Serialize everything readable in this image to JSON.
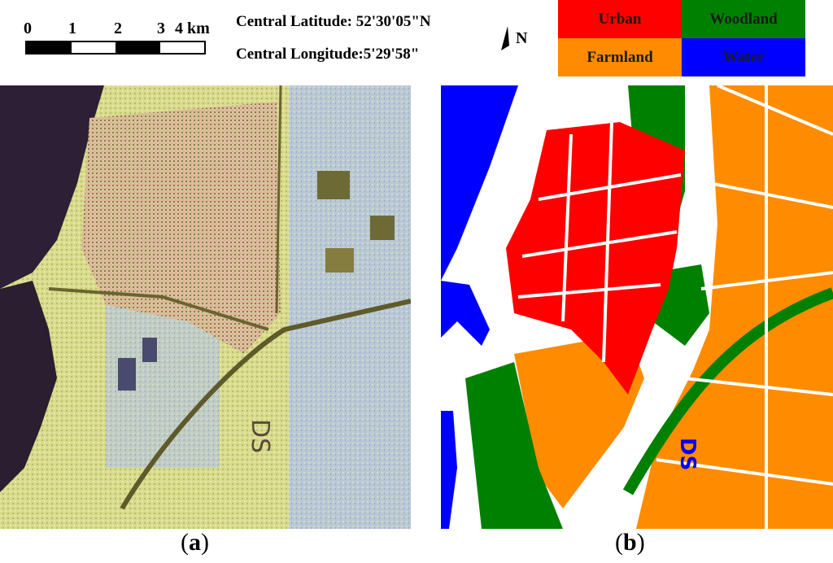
{
  "scale_bar": {
    "ticks": [
      "0",
      "1",
      "2",
      "3"
    ],
    "unit_label": "4 km"
  },
  "coordinates": {
    "latitude": "Central Latitude: 52'30'05\"N",
    "longitude": "Central Longitude:5'29'58\""
  },
  "north_arrow": {
    "label": "N",
    "icon": "north-arrow-icon"
  },
  "legend": [
    {
      "label": "Urban",
      "bg": "#ff0000",
      "color": "#1a1a1a"
    },
    {
      "label": "Woodland",
      "bg": "#008000",
      "color": "#1a1a1a"
    },
    {
      "label": "Farmland",
      "bg": "#ff8c00",
      "color": "#1a1a1a"
    },
    {
      "label": "Water",
      "bg": "#0000ff",
      "color": "#1a1a1a"
    }
  ],
  "panels": {
    "a": {
      "open": "(",
      "letter": "a",
      "close": ")"
    },
    "b": {
      "open": "(",
      "letter": "b",
      "close": ")"
    }
  },
  "colors": {
    "urban": "#ff0000",
    "woodland": "#008000",
    "farmland": "#ff8c00",
    "water": "#0000ff"
  }
}
